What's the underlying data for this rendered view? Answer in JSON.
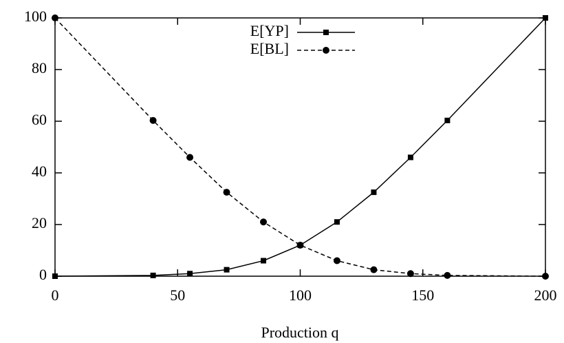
{
  "chart_data": {
    "type": "line",
    "x_label": "Production q",
    "x": [
      0,
      40,
      55,
      70,
      85,
      100,
      115,
      130,
      145,
      160,
      200
    ],
    "series": [
      {
        "name": "E[YP]",
        "color": "#000000",
        "line_style": "solid",
        "marker": "square",
        "values": [
          0,
          0.3,
          1,
          2.5,
          6,
          12,
          21,
          32.5,
          46,
          60.3,
          100
        ]
      },
      {
        "name": "E[BL]",
        "color": "#000000",
        "line_style": "dashed",
        "marker": "circle",
        "values": [
          100,
          60.3,
          46,
          32.5,
          21,
          12,
          6,
          2.5,
          1,
          0.3,
          0
        ]
      }
    ],
    "xlim": [
      0,
      200
    ],
    "xticks": [
      0,
      50,
      100,
      150,
      200
    ],
    "ylim": [
      0,
      100
    ],
    "yticks": [
      0,
      20,
      40,
      60,
      80,
      100
    ],
    "grid": false,
    "legend": "top"
  }
}
